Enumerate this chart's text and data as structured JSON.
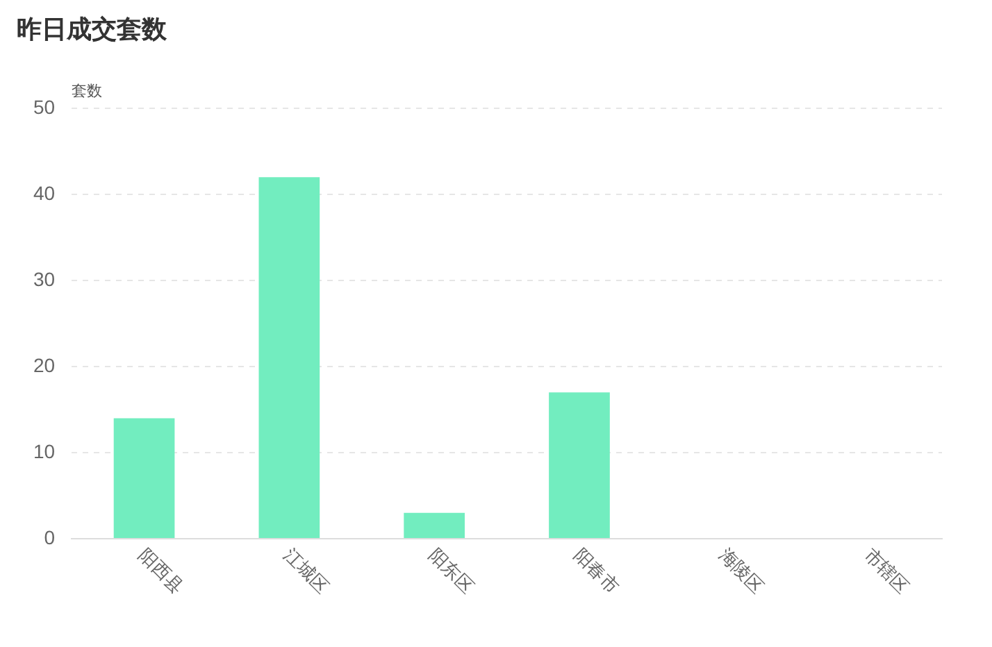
{
  "chart_data": {
    "type": "bar",
    "title": "昨日成交套数",
    "ylabel": "套数",
    "categories": [
      "阳西县",
      "江城区",
      "阳东区",
      "阳春市",
      "海陵区",
      "市辖区"
    ],
    "values": [
      14,
      42,
      3,
      17,
      0,
      0
    ],
    "color": "#72edbf",
    "ylim": [
      0,
      50
    ],
    "yticks": [
      0,
      10,
      20,
      30,
      40,
      50
    ],
    "grid": "y",
    "legend": false
  }
}
